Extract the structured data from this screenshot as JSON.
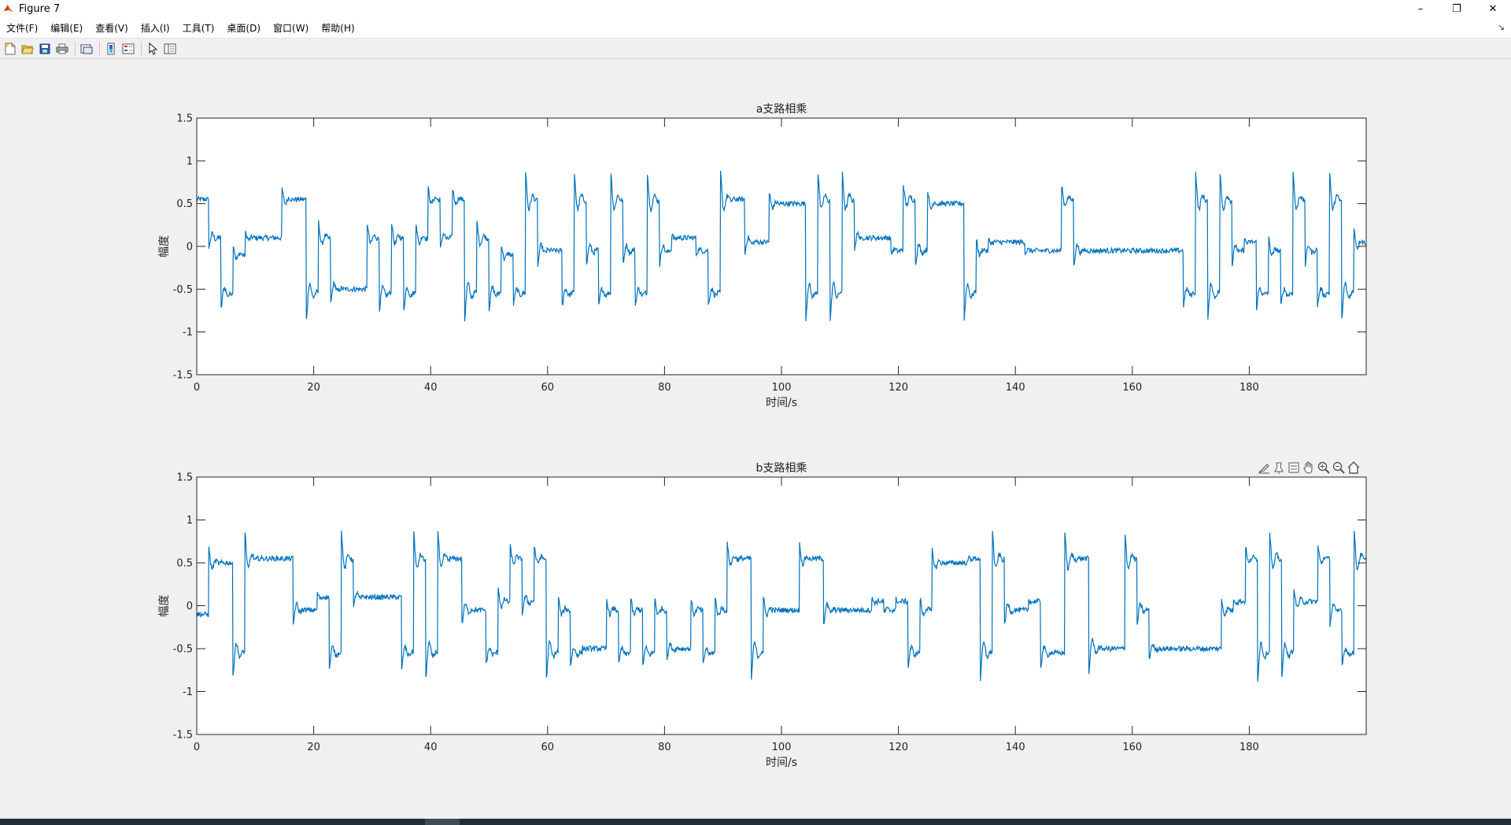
{
  "window": {
    "title": "Figure 7",
    "controls": [
      "–",
      "❐",
      "✕"
    ]
  },
  "menubar": {
    "items": [
      "文件(F)",
      "编辑(E)",
      "查看(V)",
      "插入(I)",
      "工具(T)",
      "桌面(D)",
      "窗口(W)",
      "帮助(H)"
    ],
    "expand_label": "↘"
  },
  "toolbar": {
    "buttons": [
      "new-figure-icon",
      "open-file-icon",
      "save-icon",
      "print-icon",
      "link-plot-icon",
      "colorbar-icon",
      "legend-icon",
      "edit-plot-icon",
      "property-inspector-icon"
    ]
  },
  "axes_toolbar": {
    "buttons": [
      "brush-icon",
      "data-tips-icon",
      "restore-view-icon",
      "pan-icon",
      "zoom-in-icon",
      "zoom-out-icon",
      "home-icon"
    ]
  },
  "colors": {
    "series": "#0072bd",
    "axes_bg": "#ffffff",
    "figure_bg": "#f0f0f0"
  },
  "chart_data": [
    {
      "type": "line",
      "title": "a支路相乘",
      "xlabel": "时间/s",
      "ylabel": "幅度",
      "xlim": [
        0,
        200
      ],
      "ylim": [
        -1.5,
        1.5
      ],
      "xticks": [
        0,
        20,
        40,
        60,
        80,
        100,
        120,
        140,
        160,
        180
      ],
      "yticks": [
        -1.5,
        -1,
        -0.5,
        0,
        0.5,
        1,
        1.5
      ],
      "grid": false,
      "noise_amplitude": 0.03,
      "series": [
        {
          "values": [
            0.55,
            0.1,
            -0.55,
            -0.1,
            0.1,
            0.1,
            0.1,
            0.55,
            0.55,
            -0.55,
            0.1,
            -0.5,
            -0.5,
            -0.5,
            0.1,
            -0.55,
            0.1,
            -0.55,
            0.1,
            0.55,
            0.1,
            0.55,
            -0.55,
            0.1,
            -0.55,
            -0.1,
            -0.55,
            0.55,
            -0.05,
            -0.05,
            -0.55,
            0.55,
            -0.05,
            -0.55,
            0.55,
            -0.05,
            -0.55,
            0.55,
            -0.05,
            0.1,
            0.1,
            -0.05,
            -0.55,
            0.55,
            0.55,
            0.05,
            0.05,
            0.5,
            0.5,
            0.5,
            -0.55,
            0.55,
            -0.55,
            0.55,
            0.1,
            0.1,
            0.1,
            -0.05,
            0.55,
            -0.05,
            0.5,
            0.5,
            0.5,
            -0.55,
            -0.05,
            0.05,
            0.05,
            0.05,
            -0.05,
            -0.05,
            -0.05,
            0.55,
            -0.05,
            -0.05,
            -0.05,
            -0.05,
            -0.05,
            -0.05,
            -0.05,
            -0.05,
            -0.05,
            -0.55,
            0.55,
            -0.55,
            0.55,
            -0.05,
            0.05,
            -0.55,
            -0.05,
            -0.55,
            0.55,
            -0.05,
            -0.55,
            0.55,
            -0.55,
            0.05
          ]
        }
      ]
    },
    {
      "type": "line",
      "title": "b支路相乘",
      "xlabel": "时间/s",
      "ylabel": "幅度",
      "xlim": [
        0,
        200
      ],
      "ylim": [
        -1.5,
        1.5
      ],
      "xticks": [
        0,
        20,
        40,
        60,
        80,
        100,
        120,
        140,
        160,
        180
      ],
      "yticks": [
        -1.5,
        -1,
        -0.5,
        0,
        0.5,
        1,
        1.5
      ],
      "grid": false,
      "noise_amplitude": 0.03,
      "series": [
        {
          "values": [
            -0.1,
            0.5,
            0.5,
            -0.55,
            0.55,
            0.55,
            0.55,
            0.55,
            -0.05,
            -0.05,
            0.1,
            -0.55,
            0.55,
            0.1,
            0.1,
            0.1,
            0.1,
            -0.55,
            0.55,
            -0.55,
            0.55,
            0.55,
            -0.05,
            -0.05,
            -0.55,
            0.05,
            0.55,
            0.05,
            0.55,
            -0.55,
            -0.05,
            -0.55,
            -0.5,
            -0.5,
            -0.05,
            -0.55,
            -0.05,
            -0.55,
            -0.05,
            -0.5,
            -0.5,
            -0.05,
            -0.55,
            -0.05,
            0.55,
            0.55,
            -0.55,
            -0.05,
            -0.05,
            -0.05,
            0.55,
            0.55,
            -0.05,
            -0.05,
            -0.05,
            -0.05,
            0.05,
            -0.05,
            0.05,
            -0.55,
            -0.05,
            0.5,
            0.5,
            0.5,
            0.55,
            -0.55,
            0.55,
            -0.05,
            -0.05,
            0.05,
            -0.55,
            -0.55,
            0.55,
            0.55,
            -0.5,
            -0.5,
            -0.5,
            0.55,
            -0.05,
            -0.5,
            -0.5,
            -0.5,
            -0.5,
            -0.5,
            -0.5,
            -0.05,
            0.05,
            0.55,
            -0.55,
            0.55,
            -0.55,
            0.05,
            0.05,
            0.55,
            -0.05,
            -0.55,
            0.55
          ]
        }
      ]
    }
  ]
}
